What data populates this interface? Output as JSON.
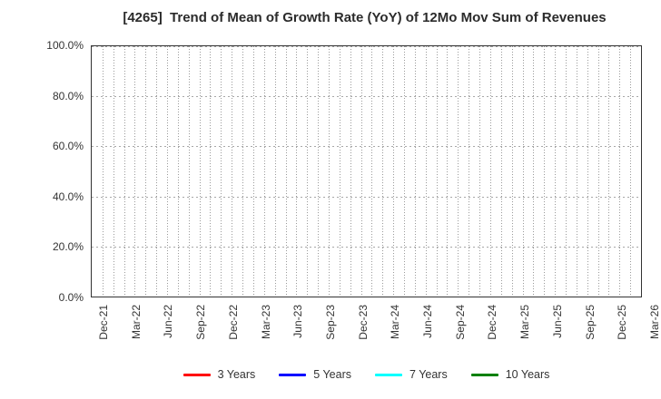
{
  "chart_data": {
    "type": "line",
    "title": "[4265]  Trend of Mean of Growth Rate (YoY) of 12Mo Mov Sum of Revenues",
    "xlabel": "",
    "ylabel": "",
    "ylim": [
      0.0,
      100.0
    ],
    "y_tick_labels": [
      "100.0%",
      "80.0%",
      "60.0%",
      "40.0%",
      "20.0%",
      "0.0%"
    ],
    "x_tick_labels": [
      "Dec-21",
      "Mar-22",
      "Jun-22",
      "Sep-22",
      "Dec-22",
      "Mar-23",
      "Jun-23",
      "Sep-23",
      "Dec-23",
      "Mar-24",
      "Jun-24",
      "Sep-24",
      "Dec-24",
      "Mar-25",
      "Jun-25",
      "Sep-25",
      "Dec-25",
      "Mar-26"
    ],
    "x_axis": {
      "start": "Dec-21",
      "end": "Mar-26",
      "months_total": 51,
      "labeled_tick_every_months": 3,
      "minor_grid_every_months": 1
    },
    "grid": true,
    "grid_style": "dotted",
    "legend_position": "bottom-center",
    "no_data_plotted": true,
    "series": [
      {
        "name": "3 Years",
        "color": "#ff0000",
        "values": []
      },
      {
        "name": "5 Years",
        "color": "#0000ff",
        "values": []
      },
      {
        "name": "7 Years",
        "color": "#00ffff",
        "values": []
      },
      {
        "name": "10 Years",
        "color": "#008000",
        "values": []
      }
    ]
  },
  "colors": {
    "background": "#ffffff",
    "frame": "#333333",
    "grid": "#9a9a9a",
    "tick_text": "#333333",
    "title_text": "#2b2b2b"
  }
}
